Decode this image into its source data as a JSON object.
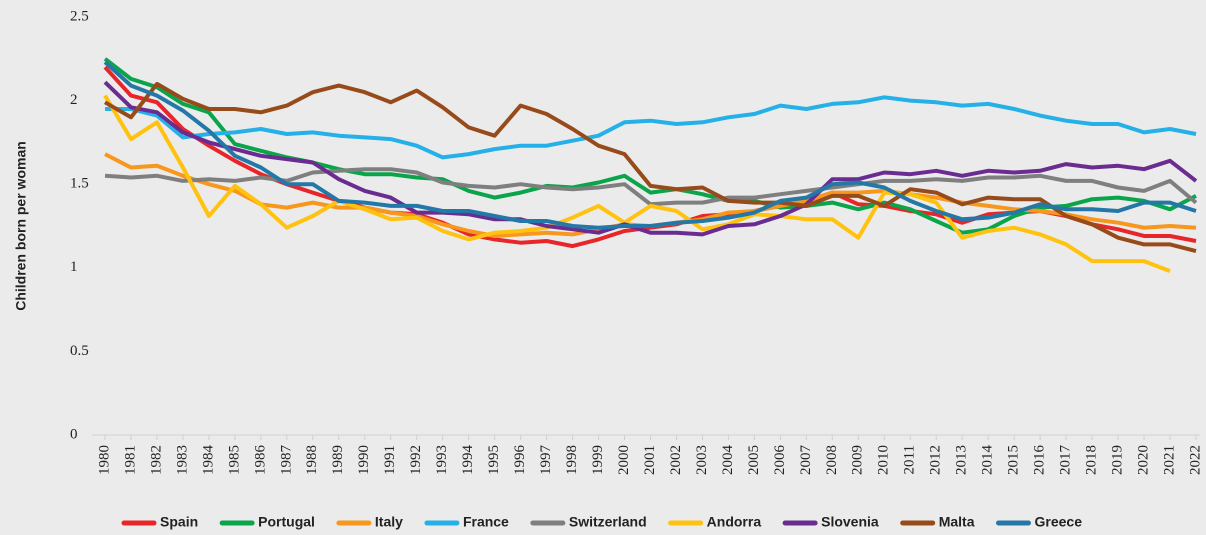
{
  "chart_data": {
    "type": "line",
    "y_label": "Children born per woman",
    "categories": [
      "1980",
      "1981",
      "1982",
      "1983",
      "1984",
      "1985",
      "1986",
      "1987",
      "1988",
      "1989",
      "1990",
      "1991",
      "1992",
      "1993",
      "1994",
      "1995",
      "1996",
      "1997",
      "1998",
      "1999",
      "2000",
      "2001",
      "2002",
      "2003",
      "2004",
      "2005",
      "2006",
      "2007",
      "2008",
      "2009",
      "2010",
      "2011",
      "2012",
      "2013",
      "2014",
      "2015",
      "2016",
      "2017",
      "2018",
      "2019",
      "2020",
      "2021",
      "2022"
    ],
    "ylim": [
      0,
      2.5
    ],
    "yticks": [
      0,
      0.5,
      1,
      1.5,
      2,
      2.5
    ],
    "grid": false,
    "legend": "bottom",
    "series": [
      {
        "name": "Spain",
        "color": "#e8262a",
        "values": [
          2.2,
          2.03,
          1.99,
          1.83,
          1.73,
          1.64,
          1.56,
          1.5,
          1.45,
          1.4,
          1.36,
          1.33,
          1.32,
          1.27,
          1.2,
          1.17,
          1.15,
          1.16,
          1.13,
          1.17,
          1.22,
          1.24,
          1.26,
          1.31,
          1.32,
          1.34,
          1.37,
          1.4,
          1.45,
          1.38,
          1.37,
          1.34,
          1.32,
          1.27,
          1.32,
          1.33,
          1.34,
          1.31,
          1.26,
          1.23,
          1.19,
          1.19,
          1.16
        ]
      },
      {
        "name": "Portugal",
        "color": "#0aa54b",
        "values": [
          2.25,
          2.13,
          2.08,
          1.98,
          1.93,
          1.74,
          1.7,
          1.66,
          1.63,
          1.59,
          1.56,
          1.56,
          1.54,
          1.53,
          1.46,
          1.42,
          1.45,
          1.49,
          1.48,
          1.51,
          1.55,
          1.45,
          1.47,
          1.44,
          1.4,
          1.4,
          1.36,
          1.37,
          1.39,
          1.35,
          1.39,
          1.35,
          1.28,
          1.21,
          1.23,
          1.31,
          1.36,
          1.37,
          1.41,
          1.42,
          1.4,
          1.35,
          1.43
        ]
      },
      {
        "name": "Italy",
        "color": "#f7971d",
        "values": [
          1.68,
          1.6,
          1.61,
          1.55,
          1.5,
          1.46,
          1.38,
          1.36,
          1.39,
          1.36,
          1.36,
          1.33,
          1.31,
          1.26,
          1.22,
          1.19,
          1.2,
          1.21,
          1.2,
          1.23,
          1.26,
          1.25,
          1.27,
          1.29,
          1.33,
          1.34,
          1.37,
          1.4,
          1.45,
          1.45,
          1.46,
          1.44,
          1.42,
          1.39,
          1.37,
          1.35,
          1.34,
          1.32,
          1.29,
          1.27,
          1.24,
          1.25,
          1.24
        ]
      },
      {
        "name": "France",
        "color": "#25b0e8",
        "values": [
          1.95,
          1.95,
          1.91,
          1.78,
          1.8,
          1.81,
          1.83,
          1.8,
          1.81,
          1.79,
          1.78,
          1.77,
          1.73,
          1.66,
          1.68,
          1.71,
          1.73,
          1.73,
          1.76,
          1.79,
          1.87,
          1.88,
          1.86,
          1.87,
          1.9,
          1.92,
          1.97,
          1.95,
          1.98,
          1.99,
          2.02,
          2.0,
          1.99,
          1.97,
          1.98,
          1.95,
          1.91,
          1.88,
          1.86,
          1.86,
          1.81,
          1.83,
          1.8
        ]
      },
      {
        "name": "Switzerland",
        "color": "#7f7f7f",
        "values": [
          1.55,
          1.54,
          1.55,
          1.52,
          1.53,
          1.52,
          1.54,
          1.52,
          1.57,
          1.58,
          1.59,
          1.59,
          1.57,
          1.51,
          1.49,
          1.48,
          1.5,
          1.48,
          1.47,
          1.48,
          1.5,
          1.38,
          1.39,
          1.39,
          1.42,
          1.42,
          1.44,
          1.46,
          1.48,
          1.5,
          1.52,
          1.52,
          1.53,
          1.52,
          1.54,
          1.54,
          1.55,
          1.52,
          1.52,
          1.48,
          1.46,
          1.52,
          1.39
        ]
      },
      {
        "name": "Andorra",
        "color": "#ffc20e",
        "values": [
          2.03,
          1.77,
          1.87,
          1.6,
          1.31,
          1.49,
          1.38,
          1.24,
          1.31,
          1.4,
          1.35,
          1.29,
          1.3,
          1.22,
          1.17,
          1.21,
          1.22,
          1.24,
          1.3,
          1.37,
          1.27,
          1.37,
          1.34,
          1.23,
          1.26,
          1.32,
          1.31,
          1.29,
          1.29,
          1.18,
          1.45,
          1.44,
          1.39,
          1.18,
          1.22,
          1.24,
          1.2,
          1.14,
          1.04,
          1.04,
          1.04,
          0.98,
          null
        ]
      },
      {
        "name": "Slovenia",
        "color": "#6b2c91",
        "values": [
          2.11,
          1.96,
          1.93,
          1.81,
          1.75,
          1.71,
          1.67,
          1.65,
          1.63,
          1.53,
          1.46,
          1.42,
          1.33,
          1.33,
          1.32,
          1.29,
          1.29,
          1.25,
          1.23,
          1.21,
          1.26,
          1.21,
          1.21,
          1.2,
          1.25,
          1.26,
          1.31,
          1.38,
          1.53,
          1.53,
          1.57,
          1.56,
          1.58,
          1.55,
          1.58,
          1.57,
          1.58,
          1.62,
          1.6,
          1.61,
          1.59,
          1.64,
          1.52
        ]
      },
      {
        "name": "Malta",
        "color": "#974b1b",
        "values": [
          1.99,
          1.9,
          2.1,
          2.01,
          1.95,
          1.95,
          1.93,
          1.97,
          2.05,
          2.09,
          2.05,
          1.99,
          2.06,
          1.96,
          1.84,
          1.79,
          1.97,
          1.92,
          1.83,
          1.73,
          1.68,
          1.49,
          1.47,
          1.48,
          1.4,
          1.39,
          1.39,
          1.37,
          1.43,
          1.43,
          1.37,
          1.47,
          1.45,
          1.38,
          1.42,
          1.41,
          1.41,
          1.31,
          1.26,
          1.18,
          1.14,
          1.14,
          1.1
        ]
      },
      {
        "name": "Greece",
        "color": "#2378a8",
        "values": [
          2.23,
          2.09,
          2.03,
          1.94,
          1.82,
          1.67,
          1.6,
          1.5,
          1.5,
          1.4,
          1.39,
          1.37,
          1.37,
          1.34,
          1.34,
          1.31,
          1.28,
          1.28,
          1.25,
          1.24,
          1.25,
          1.25,
          1.27,
          1.28,
          1.3,
          1.33,
          1.4,
          1.42,
          1.5,
          1.51,
          1.48,
          1.4,
          1.34,
          1.29,
          1.3,
          1.33,
          1.38,
          1.35,
          1.35,
          1.34,
          1.39,
          1.39,
          1.34
        ]
      }
    ]
  }
}
